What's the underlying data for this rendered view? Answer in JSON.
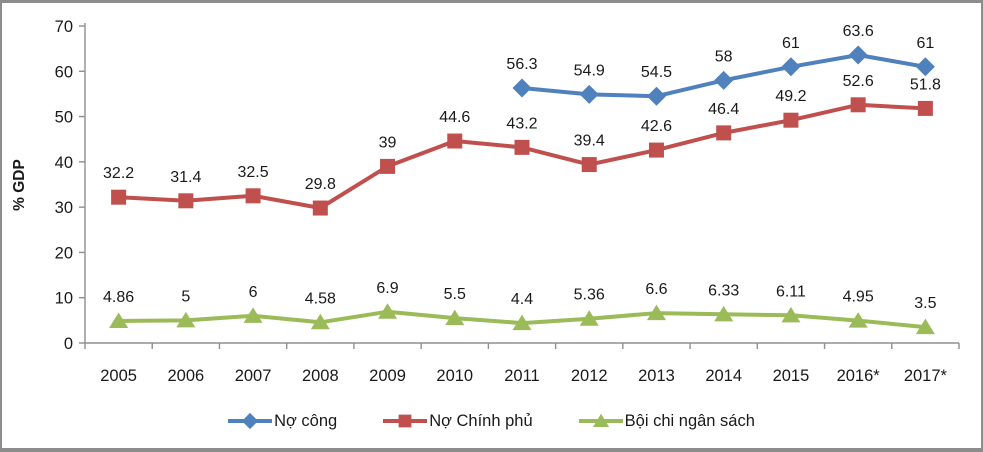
{
  "chart_data": {
    "type": "line",
    "title": "",
    "xlabel": "",
    "ylabel": "% GDP",
    "ylim": [
      0,
      70
    ],
    "yticks": [
      0,
      10,
      20,
      30,
      40,
      50,
      60,
      70
    ],
    "grid": false,
    "legend_position": "bottom",
    "categories": [
      "2005",
      "2006",
      "2007",
      "2008",
      "2009",
      "2010",
      "2011",
      "2012",
      "2013",
      "2014",
      "2015",
      "2016*",
      "2017*"
    ],
    "series": [
      {
        "name": "Nợ công",
        "marker": "diamond",
        "color": "#4F81BD",
        "values": [
          null,
          null,
          null,
          null,
          null,
          null,
          56.3,
          54.9,
          54.5,
          58,
          61,
          63.6,
          61
        ]
      },
      {
        "name": "Nợ Chính phủ",
        "marker": "square",
        "color": "#C0504D",
        "values": [
          32.2,
          31.4,
          32.5,
          29.8,
          39,
          44.6,
          43.2,
          39.4,
          42.6,
          46.4,
          49.2,
          52.6,
          51.8
        ]
      },
      {
        "name": "Bội chi ngân sách",
        "marker": "triangle",
        "color": "#9BBB59",
        "values": [
          4.86,
          5,
          6,
          4.58,
          6.9,
          5.5,
          4.4,
          5.36,
          6.6,
          6.33,
          6.11,
          4.95,
          3.5
        ]
      }
    ],
    "axis_color": "#8f8f8f",
    "text_color": "#1a1a1a"
  }
}
